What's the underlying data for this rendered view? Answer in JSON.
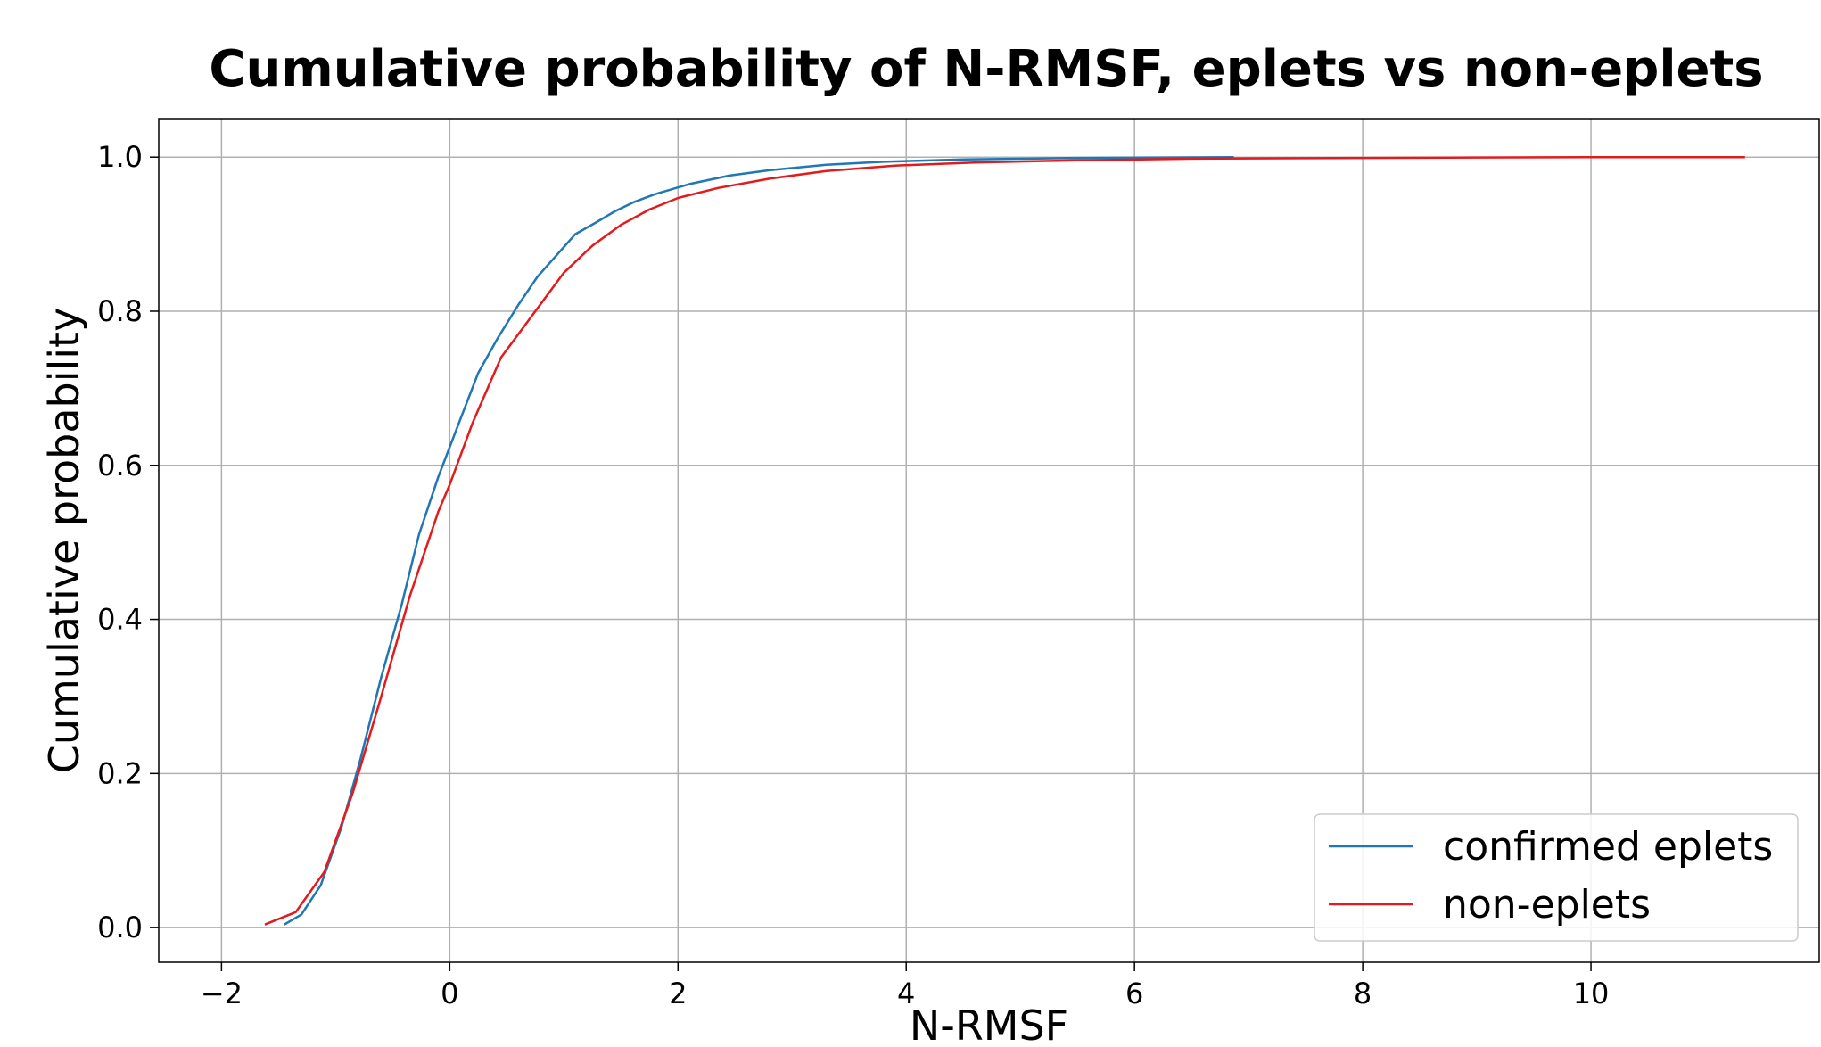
{
  "chart_data": {
    "type": "line",
    "title": "Cumulative probability of N-RMSF, eplets vs non-eplets",
    "xlabel": "N-RMSF",
    "ylabel": "Cumulative probability",
    "xlim": [
      -2.55,
      12.0
    ],
    "ylim": [
      -0.045,
      1.05
    ],
    "xticks": [
      -2,
      0,
      2,
      4,
      6,
      8,
      10
    ],
    "xtick_labels": [
      "−2",
      "0",
      "2",
      "4",
      "6",
      "8",
      "10"
    ],
    "yticks": [
      0.0,
      0.2,
      0.4,
      0.6,
      0.8,
      1.0
    ],
    "ytick_labels": [
      "0.0",
      "0.2",
      "0.4",
      "0.6",
      "0.8",
      "1.0"
    ],
    "grid": true,
    "legend_position": "lower-right",
    "series": [
      {
        "name": "confirmed eplets",
        "color": "#1f77b4",
        "x": [
          -1.45,
          -1.3,
          -1.13,
          -0.95,
          -0.78,
          -0.6,
          -0.42,
          -0.27,
          -0.1,
          0.08,
          0.25,
          0.42,
          0.6,
          0.77,
          0.95,
          1.1,
          1.28,
          1.45,
          1.62,
          1.8,
          2.1,
          2.45,
          2.8,
          3.3,
          3.8,
          4.5,
          5.5,
          6.87
        ],
        "y": [
          0.004,
          0.017,
          0.055,
          0.13,
          0.22,
          0.325,
          0.42,
          0.51,
          0.585,
          0.655,
          0.72,
          0.765,
          0.808,
          0.845,
          0.875,
          0.9,
          0.915,
          0.93,
          0.942,
          0.952,
          0.965,
          0.976,
          0.983,
          0.99,
          0.994,
          0.997,
          0.999,
          1.0
        ]
      },
      {
        "name": "non-eplets",
        "color": "#e41a1c",
        "x": [
          -1.62,
          -1.35,
          -1.1,
          -0.85,
          -0.6,
          -0.35,
          -0.1,
          0.0,
          0.2,
          0.45,
          0.75,
          1.0,
          1.25,
          1.5,
          1.75,
          2.0,
          2.35,
          2.8,
          3.3,
          3.9,
          4.6,
          5.5,
          6.5,
          8.0,
          10.0,
          11.35
        ],
        "y": [
          0.004,
          0.02,
          0.072,
          0.175,
          0.3,
          0.43,
          0.54,
          0.575,
          0.655,
          0.74,
          0.8,
          0.85,
          0.885,
          0.912,
          0.932,
          0.947,
          0.96,
          0.972,
          0.982,
          0.989,
          0.993,
          0.996,
          0.998,
          0.999,
          1.0,
          1.0
        ]
      }
    ]
  }
}
